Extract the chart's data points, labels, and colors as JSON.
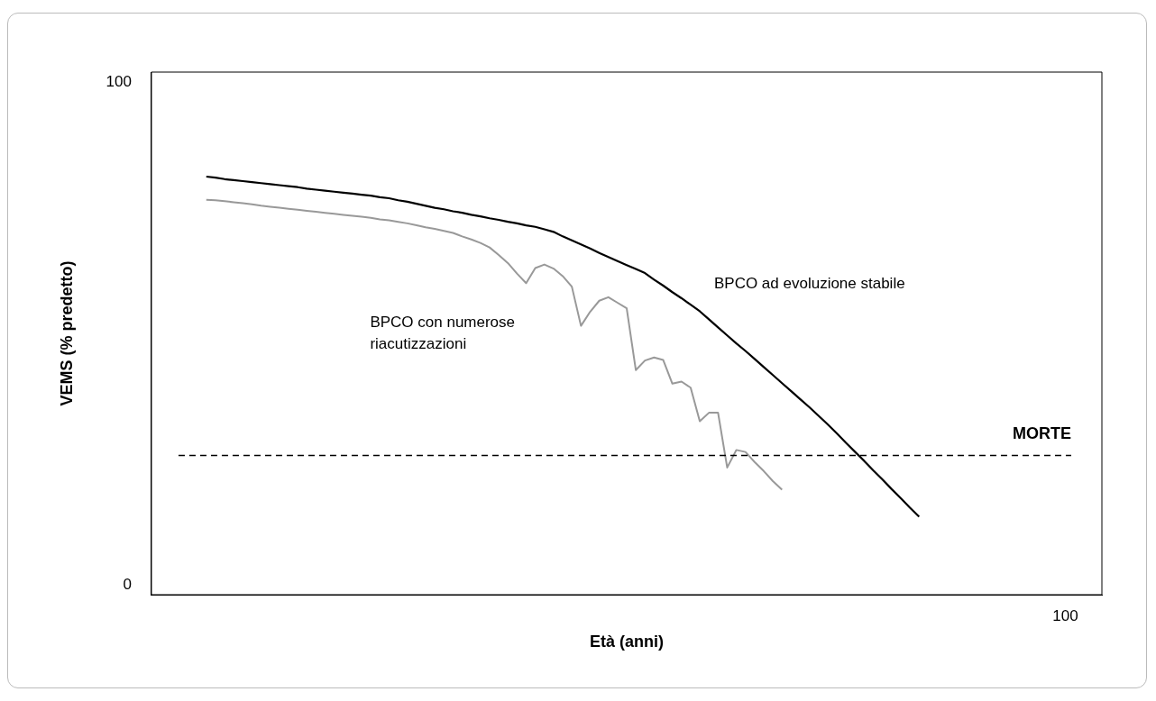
{
  "chart_data": {
    "type": "line",
    "xlabel": "Età (anni)",
    "ylabel": "VEMS (% predetto)",
    "categories": [
      null,
      null,
      null,
      null,
      null,
      null,
      null,
      null,
      null,
      null,
      null,
      null,
      null,
      null,
      null,
      null,
      null,
      null,
      null,
      null,
      null,
      null,
      null,
      null,
      null,
      null,
      null,
      null,
      null,
      null,
      null,
      null,
      null,
      null,
      null,
      null,
      null,
      null,
      null,
      null,
      null,
      null,
      null,
      null,
      null,
      null,
      null,
      null,
      null,
      null,
      null,
      null,
      null,
      null,
      null,
      null,
      null,
      null,
      null,
      null,
      null,
      null,
      null,
      null,
      null,
      null,
      null,
      null,
      null,
      null,
      null,
      null,
      null,
      null,
      null,
      null,
      null,
      null,
      null,
      null,
      null,
      null,
      null,
      null,
      null,
      null,
      null,
      null,
      null,
      null,
      null,
      null,
      null,
      null,
      null,
      null,
      null,
      null,
      null,
      null,
      "100",
      null,
      null,
      null,
      null
    ],
    "ylim": [
      -2,
      102
    ],
    "yticks": [
      0,
      100
    ],
    "grid": false,
    "legend": false,
    "marker": "none",
    "line_style": "solid",
    "series": [
      {
        "name": "BPCO ad evoluzione stabile",
        "color": "#000000",
        "values": [
          null,
          null,
          null,
          null,
          null,
          null,
          81.2,
          81.0,
          80.7,
          80.5,
          80.3,
          80.1,
          79.9,
          79.7,
          79.5,
          79.3,
          79.1,
          78.8,
          78.6,
          78.4,
          78.2,
          78.0,
          77.8,
          77.6,
          77.4,
          77.1,
          76.9,
          76.5,
          76.2,
          75.8,
          75.4,
          75.0,
          74.7,
          74.3,
          74.0,
          73.6,
          73.3,
          72.9,
          72.6,
          72.2,
          71.9,
          71.5,
          71.2,
          70.7,
          70.2,
          69.3,
          68.5,
          67.7,
          66.9,
          66.0,
          65.2,
          64.4,
          63.6,
          62.8,
          62.0,
          60.7,
          59.5,
          58.2,
          57.0,
          55.7,
          54.4,
          52.8,
          51.2,
          49.6,
          48.0,
          46.5,
          44.9,
          43.3,
          41.7,
          40.1,
          38.5,
          36.9,
          35.3,
          33.6,
          31.9,
          30.1,
          28.2,
          26.4,
          24.6,
          22.7,
          20.9,
          19.0,
          17.2,
          15.3,
          13.5,
          null,
          null,
          null,
          null,
          null,
          null,
          null,
          null,
          null,
          null,
          null,
          null,
          null,
          null,
          null,
          null,
          null,
          null,
          null,
          null
        ]
      },
      {
        "name": "BPCO con numerose riacutizzazioni",
        "color": "#999999",
        "values": [
          null,
          null,
          null,
          null,
          null,
          null,
          76.6,
          76.5,
          76.3,
          76.1,
          75.9,
          75.7,
          75.4,
          75.2,
          75.0,
          74.8,
          74.6,
          74.4,
          74.2,
          74.0,
          73.8,
          73.6,
          73.4,
          73.2,
          73.0,
          72.7,
          72.5,
          72.2,
          71.9,
          71.5,
          71.1,
          70.8,
          70.4,
          70.0,
          69.3,
          68.7,
          68.0,
          67.1,
          65.6,
          64.0,
          61.9,
          60.0,
          63.0,
          63.7,
          62.9,
          61.4,
          59.3,
          51.5,
          54.3,
          56.5,
          57.2,
          56.1,
          55.0,
          42.7,
          44.6,
          45.2,
          44.7,
          40.0,
          40.4,
          39.2,
          32.5,
          34.2,
          34.2,
          23.3,
          26.8,
          26.4,
          24.4,
          22.6,
          20.6,
          18.9,
          null,
          null,
          null,
          null,
          null,
          null,
          null,
          null,
          null,
          null,
          null,
          null,
          null,
          null,
          null,
          null,
          null,
          null,
          null,
          null,
          null,
          null,
          null,
          null,
          null,
          null,
          null,
          null,
          null,
          null,
          null,
          null,
          null,
          null,
          null
        ]
      }
    ],
    "ref_lines": [
      {
        "axis": "y",
        "value": 25.7,
        "label": "MORTE",
        "color": "#000000",
        "line_style": "dashed"
      }
    ]
  }
}
